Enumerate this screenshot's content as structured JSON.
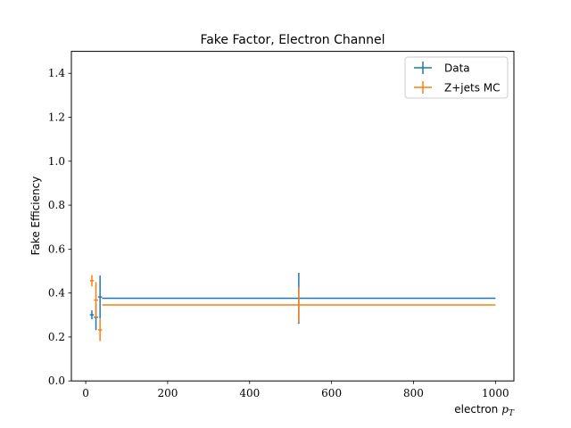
{
  "chart_data": {
    "type": "errorbar",
    "title": "Fake Factor, Electron Channel",
    "xlabel": "electron",
    "xlabel_math": "p",
    "xlabel_math_sub": "T",
    "ylabel": "Fake Efficiency",
    "xlim": [
      -35,
      1045
    ],
    "ylim": [
      0,
      1.5
    ],
    "xticks": [
      0,
      200,
      400,
      600,
      800,
      1000
    ],
    "yticks": [
      0.0,
      0.2,
      0.4,
      0.6,
      0.8,
      1.0,
      1.2,
      1.4
    ],
    "xtick_labels": [
      "0",
      "200",
      "400",
      "600",
      "800",
      "1000"
    ],
    "ytick_labels": [
      "0.0",
      "0.2",
      "0.4",
      "0.6",
      "0.8",
      "1.0",
      "1.2",
      "1.4"
    ],
    "legend_position": "top-right",
    "series": [
      {
        "name": "Data",
        "color": "#1f77b4",
        "points": [
          {
            "x": 15,
            "xerr": 5,
            "y": 0.301,
            "yerr": 0.02
          },
          {
            "x": 25,
            "xerr": 5,
            "y": 0.29,
            "yerr": 0.059
          },
          {
            "x": 35,
            "xerr": 5,
            "y": 0.382,
            "yerr": 0.098
          },
          {
            "x": 520,
            "xerr": 480,
            "y": 0.376,
            "yerr": 0.116
          }
        ]
      },
      {
        "name": "Z+jets MC",
        "color": "#ff7f0e",
        "points": [
          {
            "x": 15,
            "xerr": 5,
            "y": 0.456,
            "yerr": 0.026
          },
          {
            "x": 25,
            "xerr": 5,
            "y": 0.368,
            "yerr": 0.082
          },
          {
            "x": 35,
            "xerr": 5,
            "y": 0.232,
            "yerr": 0.051
          },
          {
            "x": 520,
            "xerr": 480,
            "y": 0.346,
            "yerr": 0.079
          }
        ]
      }
    ]
  }
}
